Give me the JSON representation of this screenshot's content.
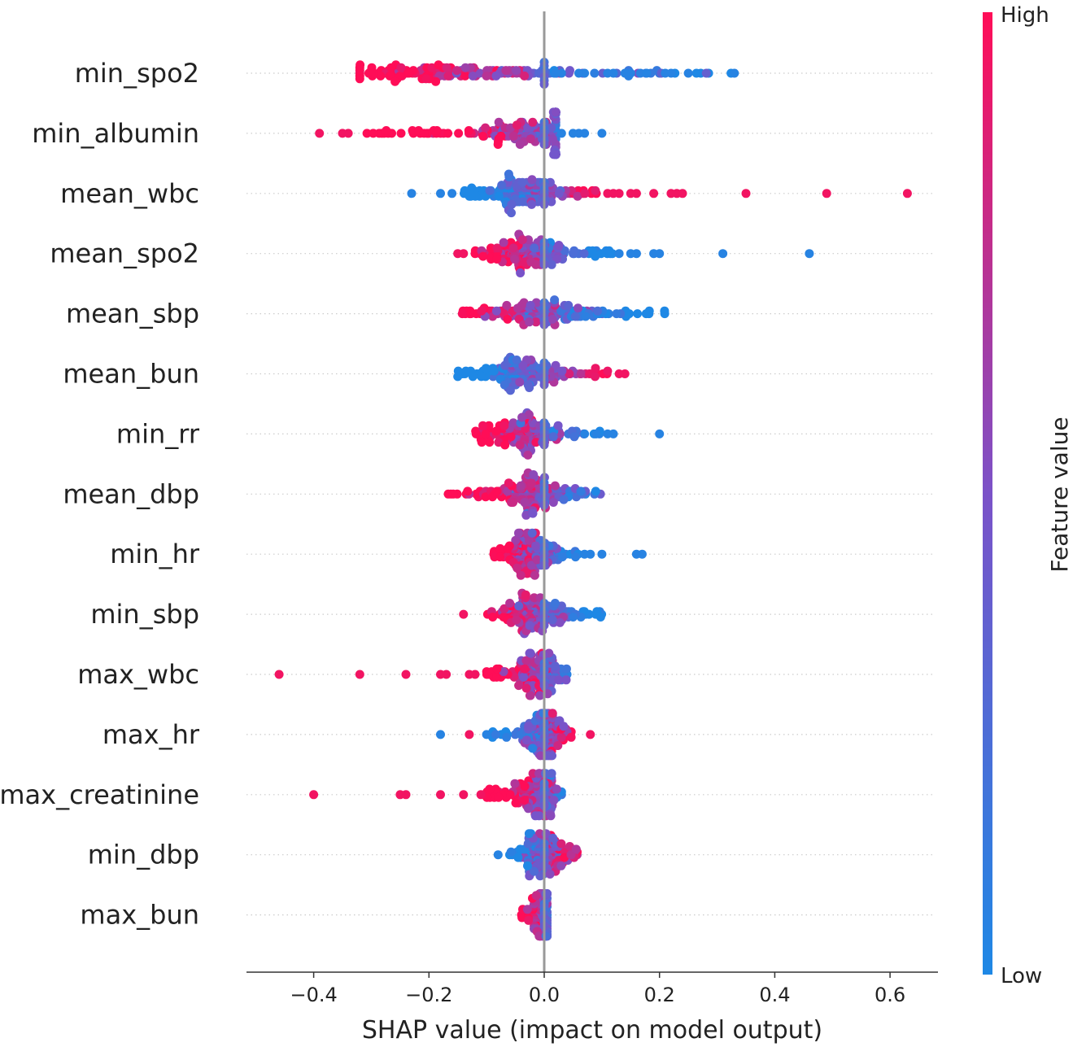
{
  "chart_data": {
    "type": "scatter",
    "subtype": "shap_beeswarm",
    "xlabel": "SHAP value (impact on model output)",
    "xlim": [
      -0.52,
      0.68
    ],
    "x_ticks": [
      -0.4,
      -0.2,
      0.0,
      0.2,
      0.4,
      0.6
    ],
    "x_tick_labels": [
      "−0.4",
      "−0.2",
      "0.0",
      "0.2",
      "0.4",
      "0.6"
    ],
    "colorbar": {
      "title": "Feature value",
      "high_label": "High",
      "low_label": "Low",
      "high_color": "#ff0d57",
      "low_color": "#1e88e5"
    },
    "features": [
      {
        "name": "min_spo2",
        "min": -0.32,
        "max": 0.33,
        "peak": -0.17,
        "outliers": [
          {
            "x": 0.33,
            "v": 0.05
          },
          {
            "x": 0.25,
            "v": 0.05
          },
          {
            "x": 0.22,
            "v": 0.05
          },
          {
            "x": 0.21,
            "v": 0.05
          },
          {
            "x": 0.15,
            "v": 0.05
          },
          {
            "x": 0.14,
            "v": 0.05
          },
          {
            "x": 0.12,
            "v": 0.05
          },
          {
            "x": 0.11,
            "v": 0.05
          },
          {
            "x": 0.07,
            "v": 0.05
          },
          {
            "x": 0.06,
            "v": 0.05
          },
          {
            "x": 0.03,
            "v": 0.05
          },
          {
            "x": 0.02,
            "v": 0.05
          }
        ]
      },
      {
        "name": "min_albumin",
        "min": -0.31,
        "max": 0.02,
        "peak": -0.02,
        "outliers": [
          {
            "x": -0.39,
            "v": 0.95
          },
          {
            "x": -0.34,
            "v": 0.95
          },
          {
            "x": -0.35,
            "v": 0.95
          },
          {
            "x": 0.1,
            "v": 0.05
          },
          {
            "x": 0.07,
            "v": 0.05
          },
          {
            "x": 0.06,
            "v": 0.05
          },
          {
            "x": 0.05,
            "v": 0.05
          },
          {
            "x": 0.03,
            "v": 0.05
          }
        ]
      },
      {
        "name": "mean_wbc",
        "min": -0.14,
        "max": 0.1,
        "peak": -0.04,
        "outliers": [
          {
            "x": -0.23,
            "v": 0.05
          },
          {
            "x": -0.18,
            "v": 0.05
          },
          {
            "x": -0.16,
            "v": 0.05
          },
          {
            "x": 0.63,
            "v": 0.95
          },
          {
            "x": 0.49,
            "v": 0.95
          },
          {
            "x": 0.35,
            "v": 0.95
          },
          {
            "x": 0.24,
            "v": 0.95
          },
          {
            "x": 0.23,
            "v": 0.95
          },
          {
            "x": 0.22,
            "v": 0.95
          },
          {
            "x": 0.19,
            "v": 0.95
          },
          {
            "x": 0.16,
            "v": 0.95
          },
          {
            "x": 0.15,
            "v": 0.95
          },
          {
            "x": 0.13,
            "v": 0.95
          },
          {
            "x": 0.12,
            "v": 0.95
          },
          {
            "x": 0.11,
            "v": 0.95
          }
        ]
      },
      {
        "name": "mean_spo2",
        "min": -0.12,
        "max": 0.12,
        "peak": -0.03,
        "outliers": [
          {
            "x": -0.15,
            "v": 0.95
          },
          {
            "x": -0.14,
            "v": 0.95
          },
          {
            "x": 0.46,
            "v": 0.05
          },
          {
            "x": 0.31,
            "v": 0.05
          },
          {
            "x": 0.2,
            "v": 0.05
          },
          {
            "x": 0.19,
            "v": 0.05
          },
          {
            "x": 0.16,
            "v": 0.05
          },
          {
            "x": 0.15,
            "v": 0.05
          },
          {
            "x": 0.13,
            "v": 0.05
          }
        ]
      },
      {
        "name": "mean_sbp",
        "min": -0.15,
        "max": 0.21,
        "peak": -0.02,
        "outliers": []
      },
      {
        "name": "mean_bun",
        "min": -0.15,
        "max": 0.12,
        "peak": -0.04,
        "outliers": [
          {
            "x": 0.14,
            "v": 0.95
          },
          {
            "x": 0.13,
            "v": 0.95
          }
        ]
      },
      {
        "name": "min_rr",
        "min": -0.12,
        "max": 0.1,
        "peak": -0.03,
        "outliers": [
          {
            "x": 0.2,
            "v": 0.05
          },
          {
            "x": 0.12,
            "v": 0.05
          },
          {
            "x": 0.11,
            "v": 0.05
          },
          {
            "x": 0.09,
            "v": 0.05
          },
          {
            "x": 0.07,
            "v": 0.05
          }
        ]
      },
      {
        "name": "mean_dbp",
        "min": -0.17,
        "max": 0.1,
        "peak": -0.02,
        "outliers": []
      },
      {
        "name": "min_hr",
        "min": -0.09,
        "max": 0.06,
        "peak": -0.03,
        "outliers": [
          {
            "x": 0.17,
            "v": 0.05
          },
          {
            "x": 0.16,
            "v": 0.05
          },
          {
            "x": 0.1,
            "v": 0.05
          },
          {
            "x": 0.08,
            "v": 0.05
          },
          {
            "x": 0.07,
            "v": 0.05
          }
        ]
      },
      {
        "name": "min_sbp",
        "min": -0.1,
        "max": 0.1,
        "peak": -0.02,
        "outliers": [
          {
            "x": -0.14,
            "v": 0.95
          }
        ]
      },
      {
        "name": "max_wbc",
        "min": -0.1,
        "max": 0.04,
        "peak": -0.01,
        "outliers": [
          {
            "x": -0.46,
            "v": 0.95
          },
          {
            "x": -0.32,
            "v": 0.95
          },
          {
            "x": -0.24,
            "v": 0.95
          },
          {
            "x": -0.18,
            "v": 0.95
          },
          {
            "x": -0.17,
            "v": 0.95
          },
          {
            "x": -0.13,
            "v": 0.95
          },
          {
            "x": -0.12,
            "v": 0.95
          }
        ]
      },
      {
        "name": "max_hr",
        "min": -0.09,
        "max": 0.05,
        "peak": 0.0,
        "outliers": [
          {
            "x": -0.18,
            "v": 0.05
          },
          {
            "x": -0.13,
            "v": 0.95
          },
          {
            "x": -0.1,
            "v": 0.05
          },
          {
            "x": 0.08,
            "v": 0.95
          }
        ]
      },
      {
        "name": "max_creatinine",
        "min": -0.1,
        "max": 0.03,
        "peak": -0.01,
        "outliers": [
          {
            "x": -0.4,
            "v": 0.95
          },
          {
            "x": -0.25,
            "v": 0.95
          },
          {
            "x": -0.24,
            "v": 0.95
          },
          {
            "x": -0.18,
            "v": 0.95
          },
          {
            "x": -0.14,
            "v": 0.95
          },
          {
            "x": -0.11,
            "v": 0.95
          }
        ]
      },
      {
        "name": "min_dbp",
        "min": -0.06,
        "max": 0.06,
        "peak": 0.0,
        "outliers": [
          {
            "x": -0.08,
            "v": 0.05
          }
        ]
      },
      {
        "name": "max_bun",
        "min": -0.04,
        "max": 0.005,
        "peak": 0.0,
        "outliers": []
      }
    ]
  }
}
